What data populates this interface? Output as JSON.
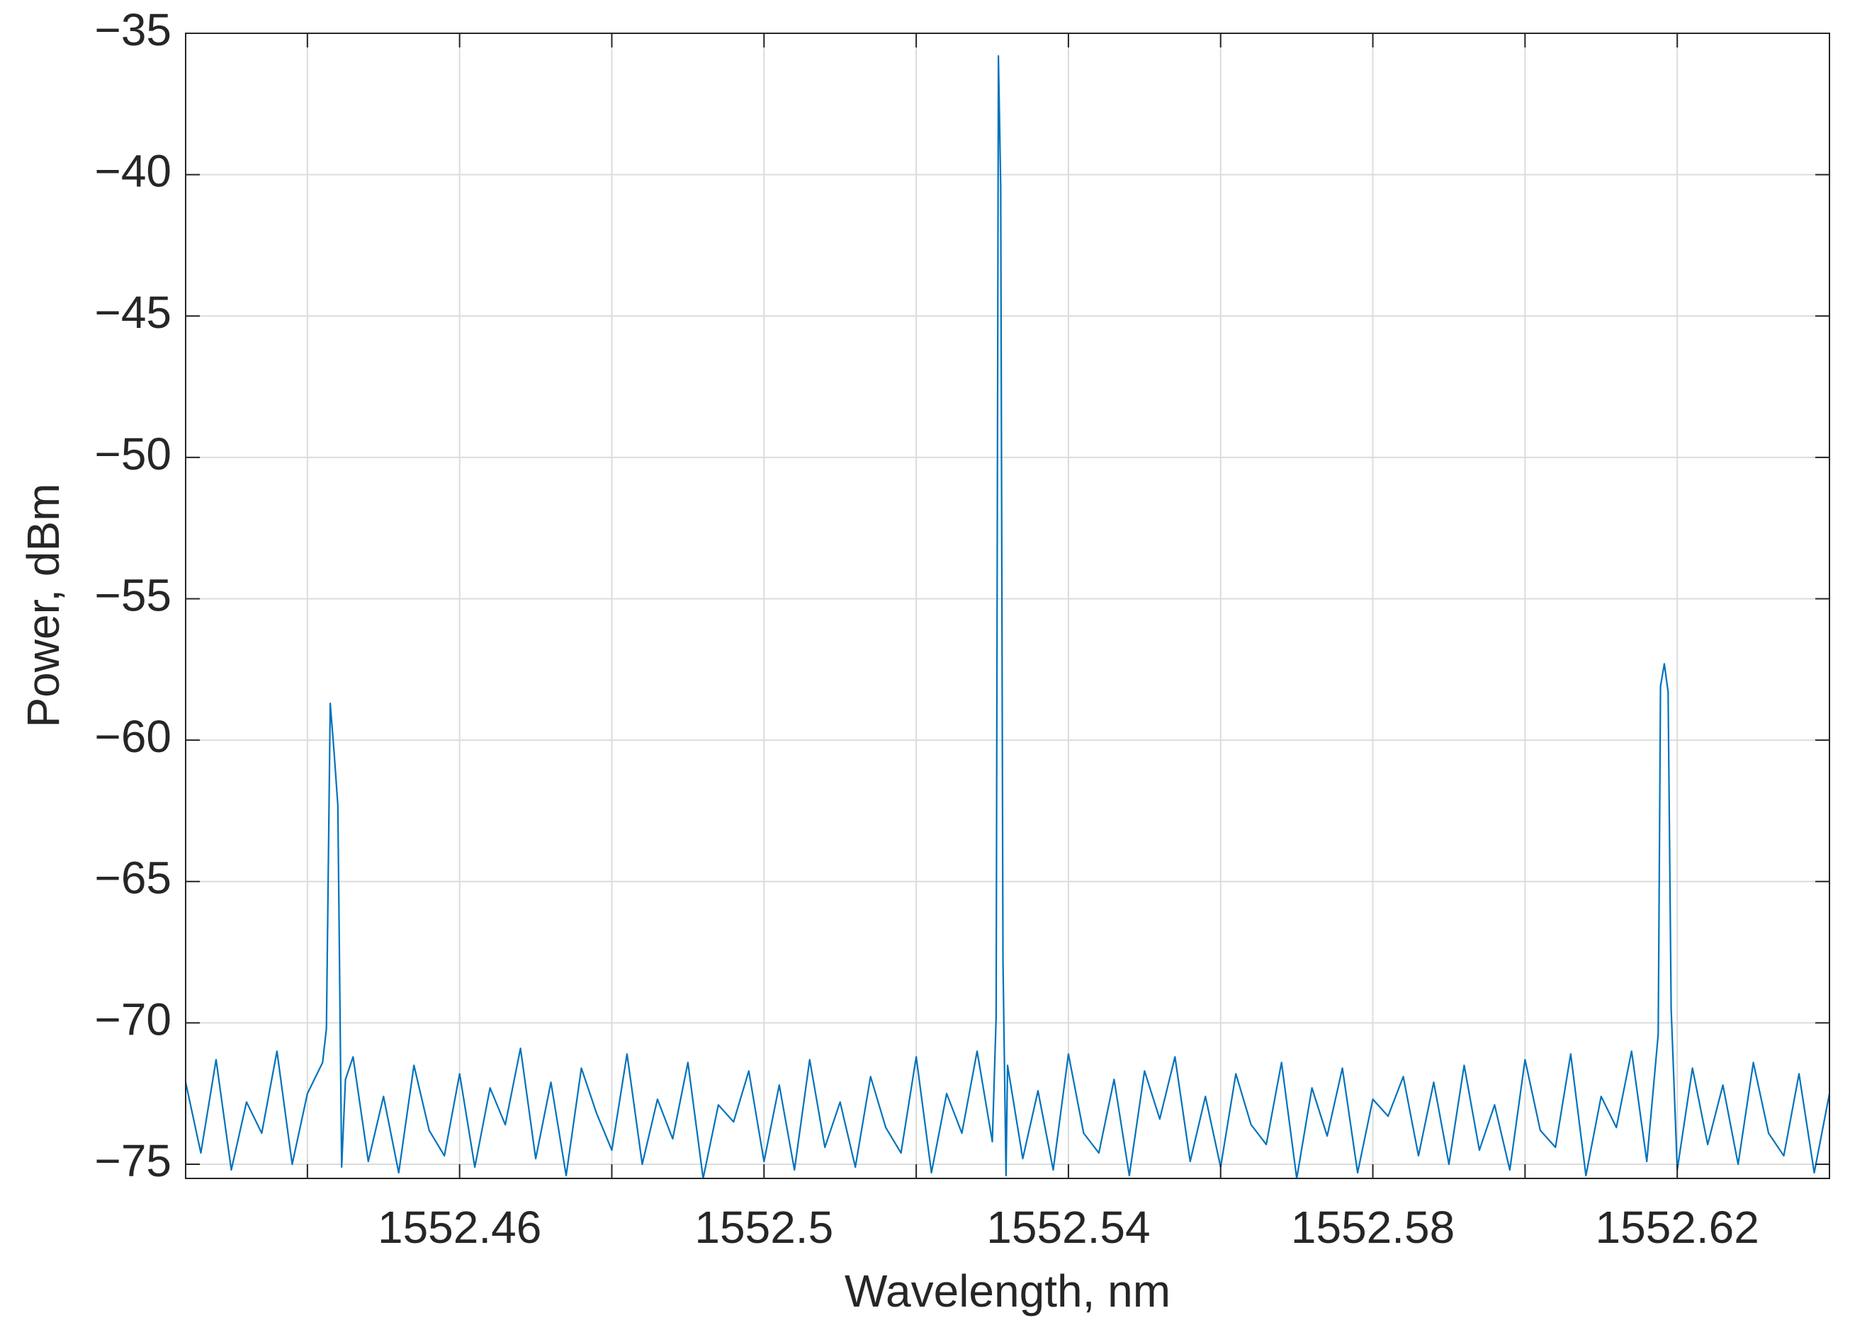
{
  "chart_data": {
    "type": "line",
    "xlabel": "Wavelength, nm",
    "ylabel": "Power, dBm",
    "color": "#0072bd",
    "grid": true,
    "xlim": [
      1552.424,
      1552.64
    ],
    "ylim": [
      -75.5,
      -35
    ],
    "xticks": [
      1552.46,
      1552.5,
      1552.54,
      1552.58,
      1552.62
    ],
    "xminorticks": [
      1552.44,
      1552.48,
      1552.52,
      1552.56,
      1552.6
    ],
    "yticks": [
      {
        "value": -75,
        "label": "−75"
      },
      {
        "value": -70,
        "label": "−70"
      },
      {
        "value": -65,
        "label": "−65"
      },
      {
        "value": -60,
        "label": "−60"
      },
      {
        "value": -55,
        "label": "−55"
      },
      {
        "value": -50,
        "label": "−50"
      },
      {
        "value": -45,
        "label": "−45"
      },
      {
        "value": -40,
        "label": "−40"
      },
      {
        "value": -35,
        "label": "−35"
      }
    ],
    "x": [
      1552.424,
      1552.426,
      1552.428,
      1552.43,
      1552.432,
      1552.434,
      1552.436,
      1552.438,
      1552.44,
      1552.442,
      1552.4425,
      1552.443,
      1552.4435,
      1552.444,
      1552.4445,
      1552.445,
      1552.446,
      1552.448,
      1552.45,
      1552.452,
      1552.454,
      1552.456,
      1552.458,
      1552.46,
      1552.462,
      1552.464,
      1552.466,
      1552.468,
      1552.47,
      1552.472,
      1552.474,
      1552.476,
      1552.478,
      1552.48,
      1552.482,
      1552.484,
      1552.486,
      1552.488,
      1552.49,
      1552.492,
      1552.494,
      1552.496,
      1552.498,
      1552.5,
      1552.502,
      1552.504,
      1552.506,
      1552.508,
      1552.51,
      1552.512,
      1552.514,
      1552.516,
      1552.518,
      1552.52,
      1552.522,
      1552.524,
      1552.526,
      1552.528,
      1552.53,
      1552.5305,
      1552.5308,
      1552.5311,
      1552.5314,
      1552.5318,
      1552.532,
      1552.534,
      1552.536,
      1552.538,
      1552.54,
      1552.542,
      1552.544,
      1552.546,
      1552.548,
      1552.55,
      1552.552,
      1552.554,
      1552.556,
      1552.558,
      1552.56,
      1552.562,
      1552.564,
      1552.566,
      1552.568,
      1552.57,
      1552.572,
      1552.574,
      1552.576,
      1552.578,
      1552.58,
      1552.582,
      1552.584,
      1552.586,
      1552.588,
      1552.59,
      1552.592,
      1552.594,
      1552.596,
      1552.598,
      1552.6,
      1552.602,
      1552.604,
      1552.606,
      1552.608,
      1552.61,
      1552.612,
      1552.614,
      1552.616,
      1552.6175,
      1552.6178,
      1552.6183,
      1552.6188,
      1552.6192,
      1552.62,
      1552.622,
      1552.624,
      1552.626,
      1552.628,
      1552.63,
      1552.632,
      1552.634,
      1552.636,
      1552.638,
      1552.64
    ],
    "values": [
      -72.1,
      -74.6,
      -71.3,
      -75.2,
      -72.8,
      -73.9,
      -71.0,
      -75.0,
      -72.5,
      -71.4,
      -70.2,
      -58.7,
      -60.4,
      -62.3,
      -75.1,
      -72.0,
      -71.2,
      -74.9,
      -72.6,
      -75.3,
      -71.5,
      -73.8,
      -74.7,
      -71.8,
      -75.1,
      -72.3,
      -73.6,
      -70.9,
      -74.8,
      -72.1,
      -75.4,
      -71.6,
      -73.2,
      -74.5,
      -71.1,
      -75.0,
      -72.7,
      -74.1,
      -71.4,
      -75.5,
      -72.9,
      -73.5,
      -71.7,
      -74.9,
      -72.2,
      -75.2,
      -71.3,
      -74.4,
      -72.8,
      -75.1,
      -71.9,
      -73.7,
      -74.6,
      -71.2,
      -75.3,
      -72.5,
      -73.9,
      -71.0,
      -74.2,
      -69.8,
      -35.8,
      -40.4,
      -67.8,
      -75.4,
      -71.5,
      -74.8,
      -72.4,
      -75.2,
      -71.1,
      -73.9,
      -74.6,
      -72.0,
      -75.4,
      -71.7,
      -73.4,
      -71.2,
      -74.9,
      -72.6,
      -75.1,
      -71.8,
      -73.6,
      -74.3,
      -71.4,
      -75.5,
      -72.3,
      -74.0,
      -71.6,
      -75.3,
      -72.7,
      -73.3,
      -71.9,
      -74.7,
      -72.1,
      -75.0,
      -71.5,
      -74.5,
      -72.9,
      -75.2,
      -71.3,
      -73.8,
      -74.4,
      -71.1,
      -75.4,
      -72.6,
      -73.7,
      -71.0,
      -74.9,
      -70.4,
      -58.1,
      -57.3,
      -58.3,
      -69.5,
      -75.2,
      -71.6,
      -74.3,
      -72.2,
      -75.0,
      -71.4,
      -73.9,
      -74.7,
      -71.8,
      -75.3,
      -72.5
    ]
  }
}
